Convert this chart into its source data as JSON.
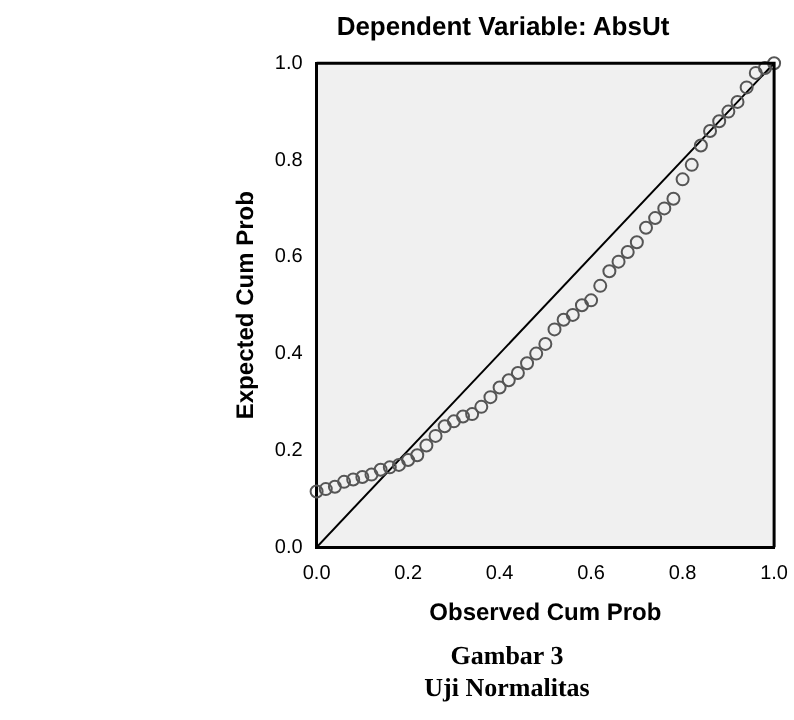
{
  "chart_data": {
    "type": "scatter",
    "title": "Dependent Variable: AbsUt",
    "xlabel": "Observed Cum Prob",
    "ylabel": "Expected Cum Prob",
    "annotations": [
      "Gambar 3",
      "Uji Normalitas"
    ],
    "xlim": [
      0,
      1
    ],
    "ylim": [
      0,
      1
    ],
    "xticks": [
      {
        "value": 0,
        "label": "0.0"
      },
      {
        "value": 0.2,
        "label": "0.2"
      },
      {
        "value": 0.4,
        "label": "0.4"
      },
      {
        "value": 0.6,
        "label": "0.6"
      },
      {
        "value": 0.8,
        "label": "0.8"
      },
      {
        "value": 1,
        "label": "1.0"
      }
    ],
    "yticks": [
      {
        "value": 0,
        "label": "0.0"
      },
      {
        "value": 0.2,
        "label": "0.2"
      },
      {
        "value": 0.4,
        "label": "0.4"
      },
      {
        "value": 0.6,
        "label": "0.6"
      },
      {
        "value": 0.8,
        "label": "0.8"
      },
      {
        "value": 1,
        "label": "1.0"
      }
    ],
    "legend": false,
    "marker": "circle",
    "series": [
      {
        "color": "#555555",
        "x": [
          0,
          0.02,
          0.04,
          0.06,
          0.08,
          0.1,
          0.12,
          0.14,
          0.16,
          0.18,
          0.2,
          0.22,
          0.24,
          0.26,
          0.28,
          0.3,
          0.32,
          0.34,
          0.36,
          0.38,
          0.4,
          0.42,
          0.44,
          0.46,
          0.48,
          0.5,
          0.52,
          0.54,
          0.56,
          0.58,
          0.6,
          0.62,
          0.64,
          0.66,
          0.68,
          0.7,
          0.72,
          0.74,
          0.76,
          0.78,
          0.8,
          0.82,
          0.84,
          0.86,
          0.88,
          0.9,
          0.92,
          0.94,
          0.96,
          0.98,
          1
        ],
        "values": [
          0.115,
          0.12,
          0.125,
          0.135,
          0.14,
          0.145,
          0.15,
          0.16,
          0.165,
          0.17,
          0.18,
          0.19,
          0.21,
          0.23,
          0.25,
          0.26,
          0.27,
          0.275,
          0.29,
          0.31,
          0.33,
          0.345,
          0.36,
          0.38,
          0.4,
          0.42,
          0.45,
          0.47,
          0.48,
          0.5,
          0.51,
          0.54,
          0.57,
          0.59,
          0.61,
          0.63,
          0.66,
          0.68,
          0.7,
          0.72,
          0.76,
          0.79,
          0.83,
          0.86,
          0.88,
          0.9,
          0.92,
          0.95,
          0.98,
          0.99,
          1
        ]
      },
      {
        "type": "line",
        "color": "#000000",
        "x": [
          0,
          1
        ],
        "values": [
          0,
          1
        ],
        "marker": "none",
        "line_style": "solid"
      }
    ]
  }
}
